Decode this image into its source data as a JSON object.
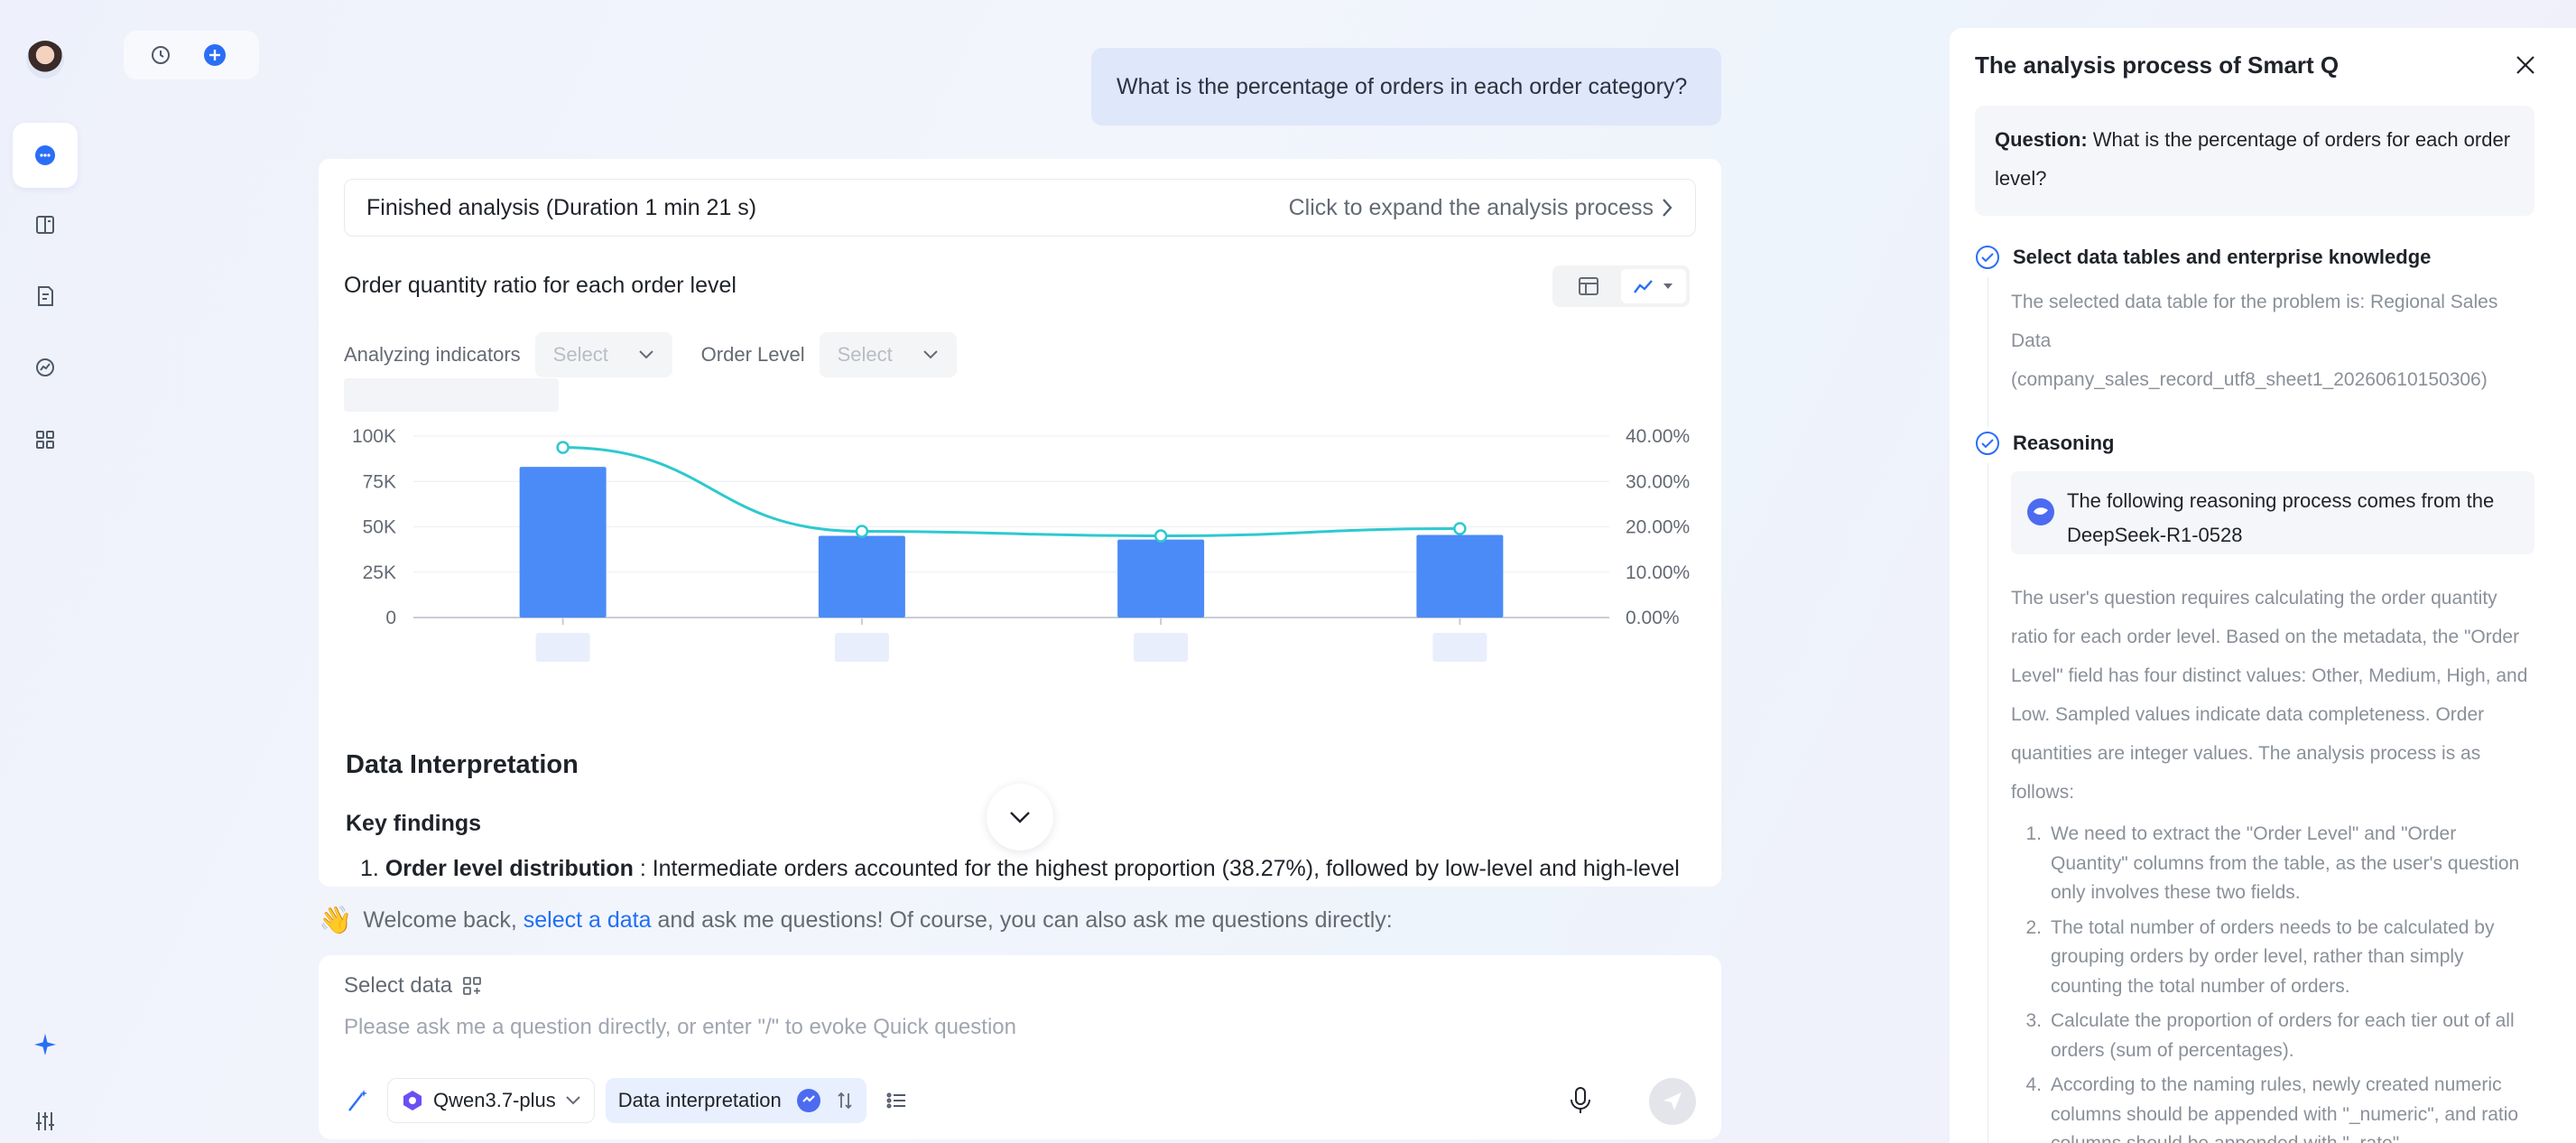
{
  "user_question": "What is the percentage of orders in each order category?",
  "analysis": {
    "status": "Finished analysis (Duration 1 min 21 s)",
    "expand_link": "Click to expand the analysis process"
  },
  "chart_section": {
    "title": "Order quantity ratio for each order level",
    "filters": [
      {
        "label": "Analyzing indicators",
        "value": "Select"
      },
      {
        "label": "Order Level",
        "value": "Select"
      }
    ],
    "view_modes": [
      "table-icon",
      "line-chart-icon"
    ]
  },
  "chart_data": {
    "type": "bar",
    "categories": [
      "",
      "",
      "",
      ""
    ],
    "series": [
      {
        "values": [
          83000,
          45000,
          43000,
          45500
        ],
        "color": "#4b8bf7",
        "axis": "left"
      },
      {
        "values": [
          37.5,
          19.0,
          18.0,
          19.6
        ],
        "color": "#2ec9cf",
        "axis": "right",
        "kind": "line"
      }
    ],
    "y_left": {
      "ticks": [
        "100K",
        "75K",
        "50K",
        "25K",
        "0"
      ],
      "range": [
        0,
        100000
      ]
    },
    "y_right": {
      "ticks": [
        "40.00%",
        "30.00%",
        "20.00%",
        "10.00%",
        "0.00%"
      ],
      "range": [
        0,
        40
      ]
    },
    "grid": true
  },
  "interpretation": {
    "heading": "Data Interpretation",
    "key_heading": "Key findings",
    "findings": [
      {
        "num": "1.",
        "bold": "Order level distribution",
        "text": " : Intermediate orders accounted for the highest proportion (38.27%), followed by low-level and high-level"
      }
    ]
  },
  "welcome": {
    "emoji": "👋",
    "prefix": "Welcome back, ",
    "link": "select a data",
    "suffix": " and ask me questions! Of course, you can also ask me questions directly:"
  },
  "composer": {
    "select_data": "Select data",
    "placeholder": "Please ask me a question directly, or enter \"/\" to evoke Quick question",
    "model": "Qwen3.7-plus",
    "chip": "Data interpretation"
  },
  "panel": {
    "title": "The analysis process of Smart Q",
    "question_label": "Question:",
    "question_text": " What is the percentage of orders for each order level?",
    "step1_title": "Select data tables and enterprise knowledge",
    "step1_text": "The selected data table for the problem is: Regional Sales Data (company_sales_record_utf8_sheet1_20260610150306)",
    "step2_title": "Reasoning",
    "source_text": "The following reasoning process comes from the DeepSeek-R1-0528",
    "reasoning_text": "The user's question requires calculating the order quantity ratio for each order level. Based on the metadata, the \"Order Level\" field has four distinct values: Other, Medium, High, and Low. Sampled values indicate data completeness. Order quantities are integer values. The analysis process is as follows:",
    "reasoning_steps": [
      {
        "n": "1.",
        "t": "We need to extract the \"Order Level\" and \"Order Quantity\" columns from the table, as the user's question only involves these two fields."
      },
      {
        "n": "2.",
        "t": "The total number of orders needs to be calculated by grouping orders by order level, rather than simply counting the total number of orders."
      },
      {
        "n": "3.",
        "t": "Calculate the proportion of orders for each tier out of all orders (sum of percentages)."
      },
      {
        "n": "4.",
        "t": "According to the naming rules, newly created numeric columns should be appended with \"_numeric\", and ratio columns should be appended with \"_rate\"."
      }
    ]
  }
}
